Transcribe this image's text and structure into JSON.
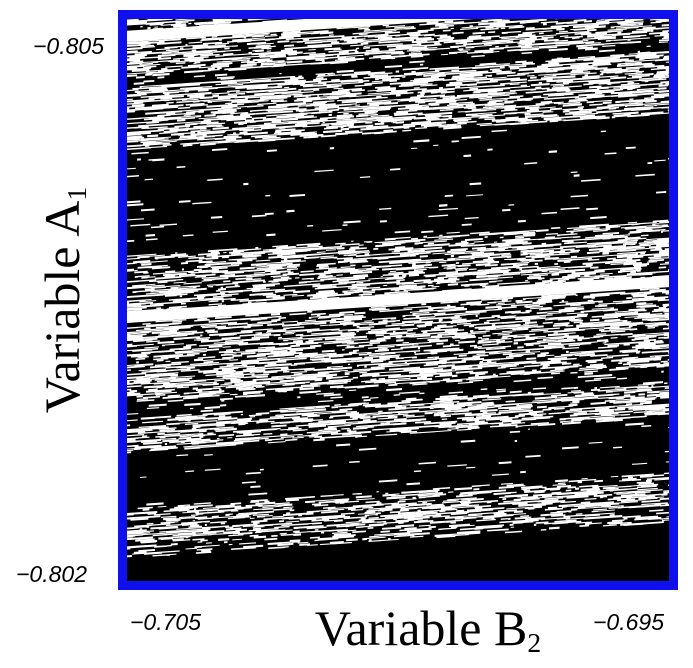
{
  "chart_data": {
    "type": "heatmap",
    "xlabel": "Variable B",
    "xlabel_subscript": "2",
    "ylabel": "Variable A",
    "ylabel_subscript": "1",
    "xlim": [
      -0.705,
      -0.695
    ],
    "ylim": [
      -0.805,
      -0.802
    ],
    "x_tick_labels": [
      "−0.705",
      "−0.695"
    ],
    "y_tick_labels": [
      "−0.805",
      "−0.802"
    ],
    "grid": false,
    "legend": "none",
    "colors": {
      "frame": "#1010ee",
      "region_a": "#000000",
      "region_b": "#ffffff"
    },
    "bands": [
      {
        "y_left": -0.804997,
        "y_right": -0.804937,
        "white_fraction": 0.55
      },
      {
        "y_left": -0.804937,
        "y_right": -0.804877,
        "white_fraction": 1.0
      },
      {
        "y_left": -0.804877,
        "y_right": -0.804697,
        "white_fraction": 0.6
      },
      {
        "y_left": -0.804697,
        "y_right": -0.804637,
        "white_fraction": 0.08
      },
      {
        "y_left": -0.804637,
        "y_right": -0.804307,
        "white_fraction": 0.62
      },
      {
        "y_left": -0.804307,
        "y_right": -0.803737,
        "white_fraction": 0.02
      },
      {
        "y_left": -0.803737,
        "y_right": -0.803437,
        "white_fraction": 0.55
      },
      {
        "y_left": -0.803437,
        "y_right": -0.803377,
        "white_fraction": 0.97
      },
      {
        "y_left": -0.803377,
        "y_right": -0.802957,
        "white_fraction": 0.55
      },
      {
        "y_left": -0.802957,
        "y_right": -0.802867,
        "white_fraction": 0.12
      },
      {
        "y_left": -0.802867,
        "y_right": -0.802687,
        "white_fraction": 0.55
      },
      {
        "y_left": -0.802687,
        "y_right": -0.802387,
        "white_fraction": 0.02
      },
      {
        "y_left": -0.802387,
        "y_right": -0.802317,
        "white_fraction": 0.45
      },
      {
        "y_left": -0.802317,
        "y_right": -0.802217,
        "white_fraction": 0.6
      },
      {
        "y_left": -0.802217,
        "y_right": -0.802127,
        "white_fraction": 0.4
      }
    ],
    "band_slope_y_per_x": -0.0192
  }
}
